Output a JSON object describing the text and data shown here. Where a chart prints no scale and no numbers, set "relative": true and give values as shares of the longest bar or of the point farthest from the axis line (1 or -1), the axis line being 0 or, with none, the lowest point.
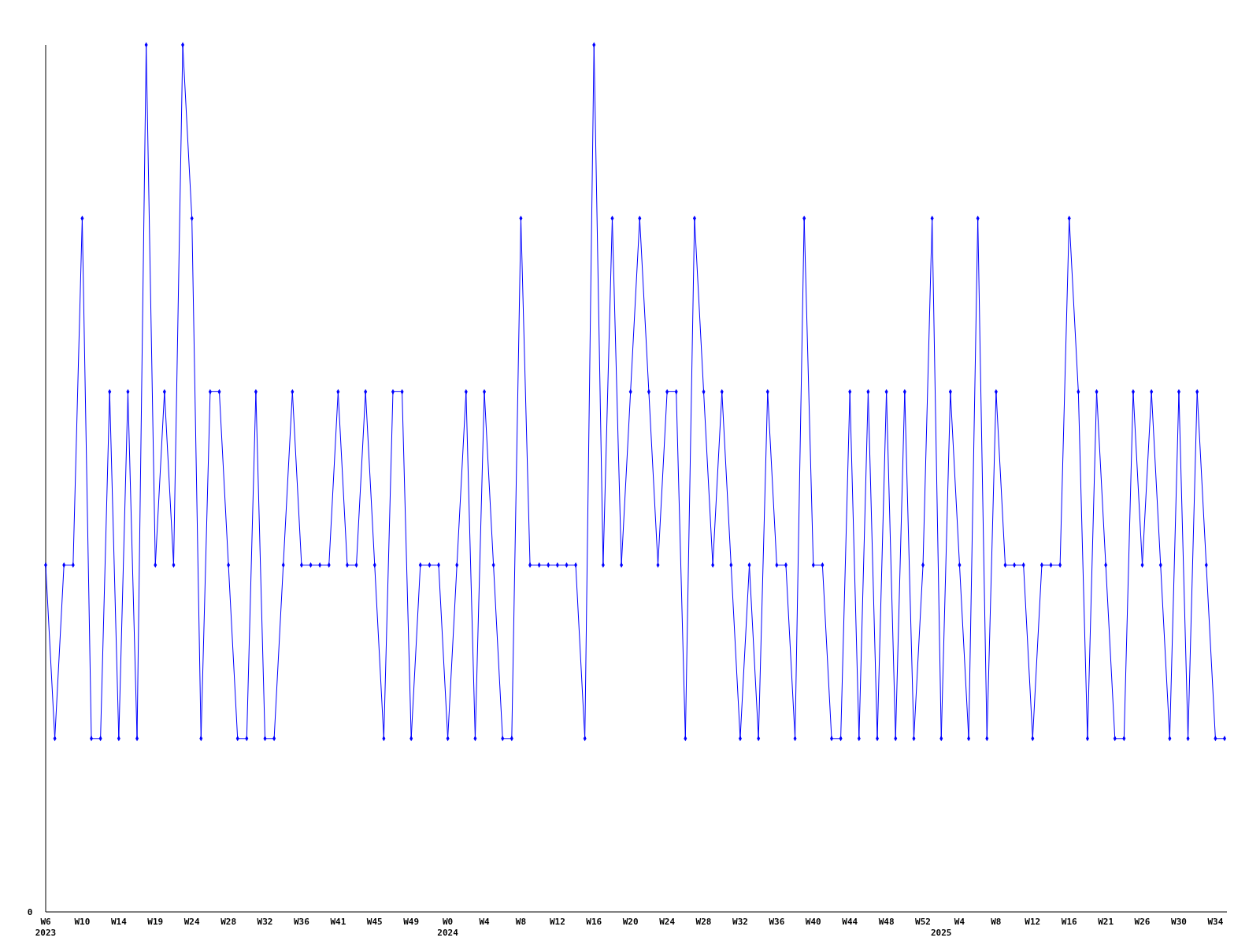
{
  "chart_data": {
    "type": "line",
    "relative": true,
    "marker": "diamond",
    "line_style": "solid",
    "categories": [
      "W6\n2023",
      null,
      null,
      null,
      "W10",
      null,
      null,
      null,
      "W14",
      null,
      null,
      null,
      "W19",
      null,
      null,
      null,
      "W24",
      null,
      null,
      null,
      "W28",
      null,
      null,
      null,
      "W32",
      null,
      null,
      null,
      "W36",
      null,
      null,
      null,
      "W41",
      null,
      null,
      null,
      "W45",
      null,
      null,
      null,
      "W49",
      null,
      null,
      null,
      "W0\n2024",
      null,
      null,
      null,
      "W4",
      null,
      null,
      null,
      "W8",
      null,
      null,
      null,
      "W12",
      null,
      null,
      null,
      "W16",
      null,
      null,
      null,
      "W20",
      null,
      null,
      null,
      "W24",
      null,
      null,
      null,
      "W28",
      null,
      null,
      null,
      "W32",
      null,
      null,
      null,
      "W36",
      null,
      null,
      null,
      "W40",
      null,
      null,
      null,
      "W44",
      null,
      null,
      null,
      "W48",
      null,
      null,
      null,
      "W52",
      null,
      "\n2025",
      null,
      "W4",
      null,
      null,
      null,
      "W8",
      null,
      null,
      null,
      "W12",
      null,
      null,
      null,
      "W16",
      null,
      null,
      null,
      "W21",
      null,
      null,
      null,
      "W26",
      null,
      null,
      null,
      "W30",
      null,
      null,
      null,
      "W34",
      null
    ],
    "series": [
      {
        "color": "#0000ff",
        "values": [
          0.4,
          0.2,
          0.4,
          0.4,
          0.8,
          0.2,
          0.2,
          0.6,
          0.2,
          0.6,
          0.2,
          1,
          0.4,
          0.6,
          0.4,
          1,
          0.8,
          0.2,
          0.6,
          0.6,
          0.4,
          0.2,
          0.2,
          0.6,
          0.2,
          0.2,
          0.4,
          0.6,
          0.4,
          0.4,
          0.4,
          0.4,
          0.6,
          0.4,
          0.4,
          0.6,
          0.4,
          0.2,
          0.6,
          0.6,
          0.2,
          0.4,
          0.4,
          0.4,
          0.2,
          0.4,
          0.6,
          0.2,
          0.6,
          0.4,
          0.2,
          0.2,
          0.8,
          0.4,
          0.4,
          0.4,
          0.4,
          0.4,
          0.4,
          0.2,
          1,
          0.4,
          0.8,
          0.4,
          0.6,
          0.8,
          0.6,
          0.4,
          0.6,
          0.6,
          0.2,
          0.8,
          0.6,
          0.4,
          0.6,
          0.4,
          0.2,
          0.4,
          0.2,
          0.6,
          0.4,
          0.4,
          0.2,
          0.8,
          0.4,
          0.4,
          0.2,
          0.2,
          0.6,
          0.2,
          0.6,
          0.2,
          0.6,
          0.2,
          0.6,
          0.2,
          0.4,
          0.8,
          0.2,
          0.6,
          0.4,
          0.2,
          0.8,
          0.2,
          0.6,
          0.4,
          0.4,
          0.4,
          0.2,
          0.4,
          0.4,
          0.4,
          0.8,
          0.6,
          0.2,
          0.6,
          0.4,
          0.2,
          0.2,
          0.6,
          0.4,
          0.6,
          0.4,
          0.2,
          0.6,
          0.2,
          0.6,
          0.4,
          0.2,
          0.2
        ]
      }
    ],
    "annotations": [
      "0"
    ]
  }
}
